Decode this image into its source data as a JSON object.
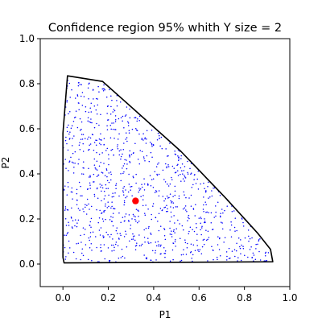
{
  "chart_data": {
    "type": "scatter",
    "title": "Confidence region 95% whith Y size = 2",
    "xlabel": "P1",
    "ylabel": "P2",
    "xlim": [
      -0.1,
      1.0
    ],
    "ylim": [
      -0.1,
      1.0
    ],
    "xticks": [
      "0.0",
      "0.2",
      "0.4",
      "0.6",
      "0.8",
      "1.0"
    ],
    "yticks": [
      "0.0",
      "0.2",
      "0.4",
      "0.6",
      "0.8",
      "1.0"
    ],
    "xtick_values": [
      0.0,
      0.2,
      0.4,
      0.6,
      0.8,
      1.0
    ],
    "ytick_values": [
      0.0,
      0.2,
      0.4,
      0.6,
      0.8,
      1.0
    ],
    "grid": false,
    "region_color": "#000000",
    "sample_color": "#0000ff",
    "estimate_color": "#ff0000",
    "region_hull": [
      [
        0.02,
        0.835
      ],
      [
        0.175,
        0.81
      ],
      [
        0.32,
        0.68
      ],
      [
        0.52,
        0.5
      ],
      [
        0.72,
        0.29
      ],
      [
        0.86,
        0.135
      ],
      [
        0.915,
        0.065
      ],
      [
        0.925,
        0.01
      ],
      [
        0.005,
        0.005
      ],
      [
        0.0,
        0.03
      ],
      [
        0.0,
        0.58
      ]
    ],
    "estimate": {
      "x": 0.32,
      "y": 0.28
    },
    "sample_count": 1000,
    "sample_seed": 20240611
  }
}
